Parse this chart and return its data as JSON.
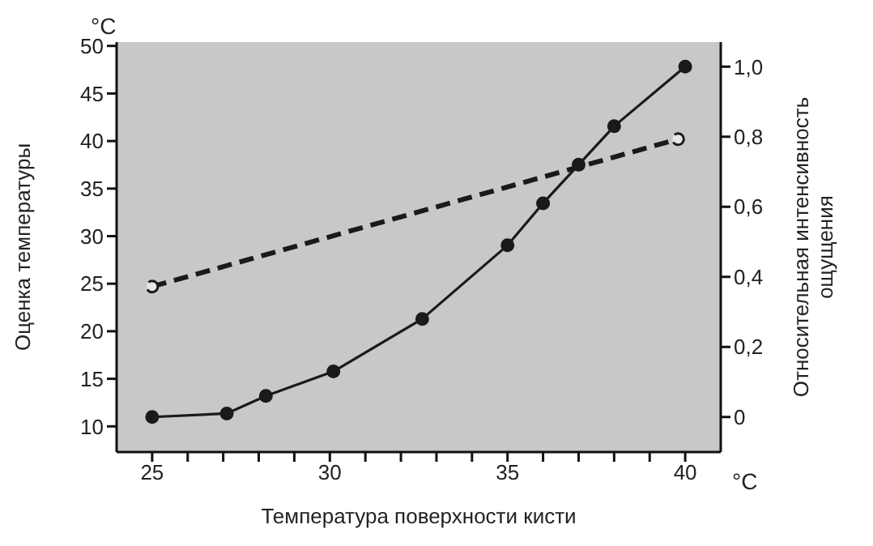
{
  "chart_data": {
    "type": "line",
    "xlabel": "Температура поверхности кисти",
    "ylabel": "Оценка температуры",
    "y2label": "Относительная интенсивность ощущения",
    "annotations": [
      "°C",
      "°C"
    ],
    "xlim": [
      24,
      41
    ],
    "xticks": [
      {
        "value": 25,
        "label": "25"
      },
      {
        "value": 26,
        "label": null
      },
      {
        "value": 27,
        "label": null
      },
      {
        "value": 28,
        "label": null
      },
      {
        "value": 29,
        "label": null
      },
      {
        "value": 30,
        "label": "30"
      },
      {
        "value": 31,
        "label": null
      },
      {
        "value": 32,
        "label": null
      },
      {
        "value": 33,
        "label": null
      },
      {
        "value": 34,
        "label": null
      },
      {
        "value": 35,
        "label": "35"
      },
      {
        "value": 36,
        "label": null
      },
      {
        "value": 37,
        "label": null
      },
      {
        "value": 38,
        "label": null
      },
      {
        "value": 39,
        "label": null
      },
      {
        "value": 40,
        "label": "40"
      }
    ],
    "ylim": [
      7.3,
      50.4
    ],
    "yticks": [
      10,
      15,
      20,
      25,
      30,
      35,
      40,
      45,
      50
    ],
    "y2lim": [
      -0.1,
      1.07
    ],
    "y2ticks": [
      0,
      {
        "value": 0.2,
        "label": "0,2"
      },
      {
        "value": 0.4,
        "label": "0,4"
      },
      {
        "value": 0.6,
        "label": "0,6"
      },
      {
        "value": 0.8,
        "label": "0,8"
      },
      {
        "value": 1.0,
        "label": "1,0"
      }
    ],
    "series": [
      {
        "color": "#1a1a1a",
        "line_style": "dashed",
        "marker": "circle",
        "x": [
          25,
          39.8
        ],
        "values": [
          24.7,
          40.2
        ]
      },
      {
        "color": "#1a1a1a",
        "line_style": "solid",
        "marker": "circle",
        "axis": "y2",
        "x": [
          25,
          27.1,
          28.2,
          30.1,
          32.6,
          35,
          36,
          37,
          38,
          40
        ],
        "values": [
          0,
          0.01,
          0.06,
          0.13,
          0.28,
          0.49,
          0.61,
          0.72,
          0.83,
          1.0
        ]
      }
    ]
  }
}
